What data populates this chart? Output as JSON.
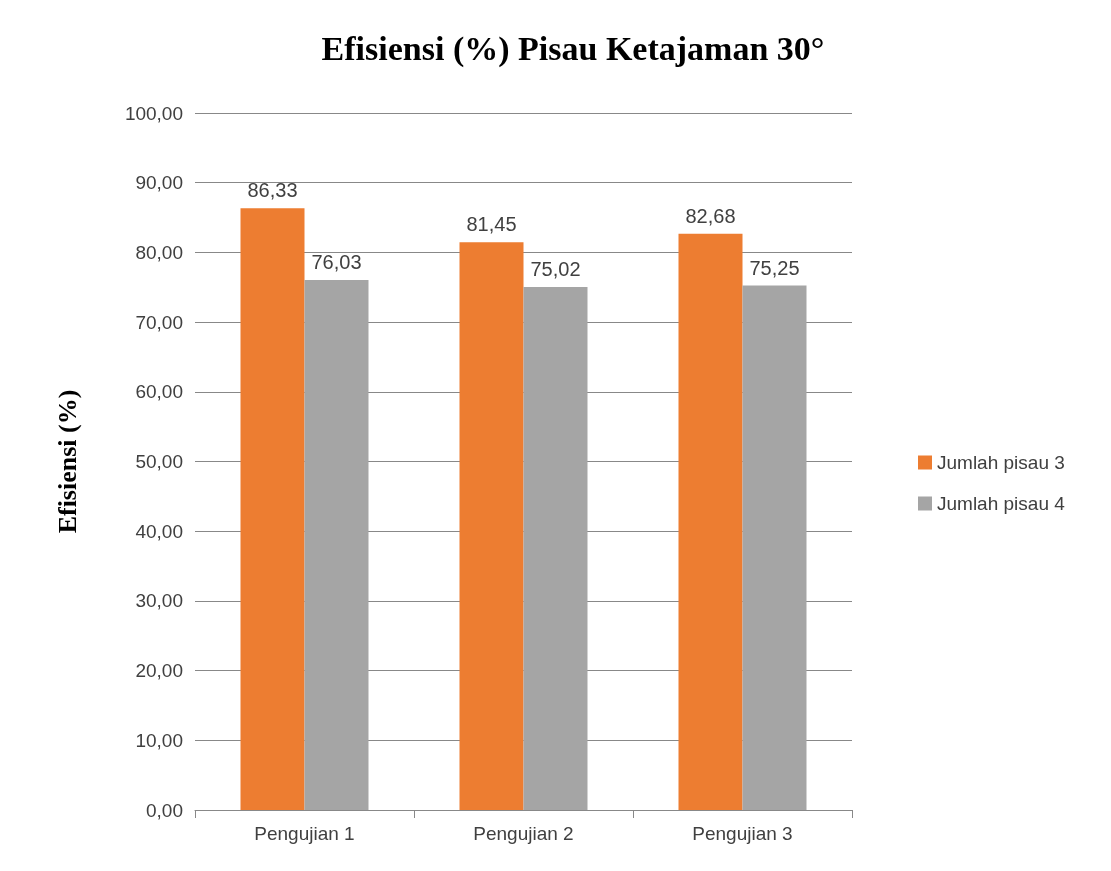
{
  "chart_data": {
    "type": "bar",
    "title": "Efisiensi (%) Pisau Ketajaman 30°",
    "ylabel": "Efisiensi (%)",
    "categories": [
      "Pengujian 1",
      "Pengujian 2",
      "Pengujian 3"
    ],
    "series": [
      {
        "name": "Jumlah pisau 3",
        "color": "#ed7d31",
        "values": [
          86.33,
          81.45,
          82.68
        ],
        "value_labels": [
          "86,33",
          "81,45",
          "82,68"
        ]
      },
      {
        "name": "Jumlah pisau 4",
        "color": "#a5a5a5",
        "values": [
          76.03,
          75.02,
          75.25
        ],
        "value_labels": [
          "76,03",
          "75,02",
          "75,25"
        ]
      }
    ],
    "ylim": [
      0,
      100
    ],
    "yticks": [
      {
        "value": 0,
        "label": "0,00"
      },
      {
        "value": 10,
        "label": "10,00"
      },
      {
        "value": 20,
        "label": "20,00"
      },
      {
        "value": 30,
        "label": "30,00"
      },
      {
        "value": 40,
        "label": "40,00"
      },
      {
        "value": 50,
        "label": "50,00"
      },
      {
        "value": 60,
        "label": "60,00"
      },
      {
        "value": 70,
        "label": "70,00"
      },
      {
        "value": 80,
        "label": "80,00"
      },
      {
        "value": 90,
        "label": "90,00"
      },
      {
        "value": 100,
        "label": "100,00"
      }
    ],
    "grid": "y",
    "legend": "right"
  }
}
